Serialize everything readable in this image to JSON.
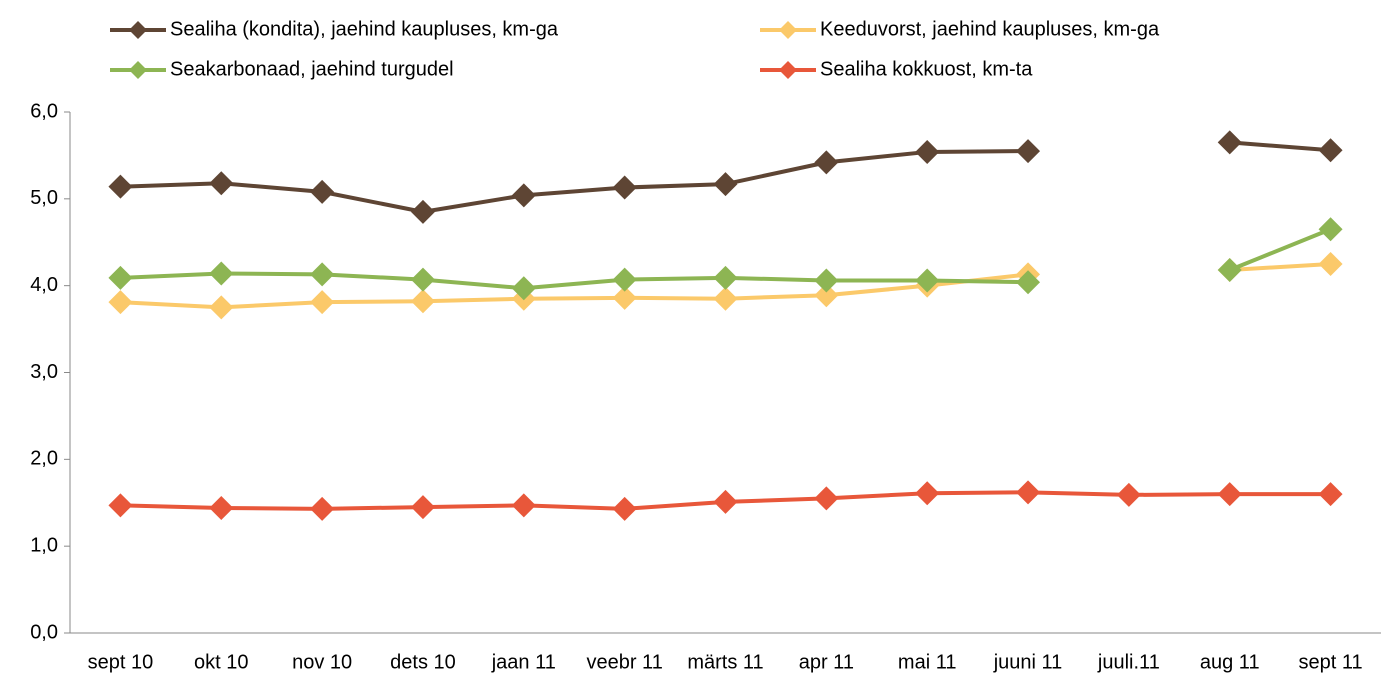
{
  "chart_data": {
    "type": "line",
    "categories": [
      "sept 10",
      "okt 10",
      "nov 10",
      "dets 10",
      "jaan 11",
      "veebr 11",
      "märts 11",
      "apr 11",
      "mai 11",
      "juuni 11",
      "juuli.11",
      "aug 11",
      "sept 11"
    ],
    "series": [
      {
        "name": "Sealiha (kondita), jaehind kaupluses, km-ga",
        "color": "#5e4534",
        "values": [
          5.14,
          5.18,
          5.08,
          4.85,
          5.04,
          5.13,
          5.17,
          5.42,
          5.54,
          5.55,
          null,
          5.65,
          5.56
        ]
      },
      {
        "name": "Keeduvorst, jaehind kaupluses, km-ga",
        "color": "#fbc96a",
        "values": [
          3.81,
          3.75,
          3.81,
          3.82,
          3.85,
          3.86,
          3.85,
          3.89,
          4.0,
          4.13,
          null,
          4.18,
          4.25
        ]
      },
      {
        "name": "Seakarbonaad, jaehind turgudel",
        "color": "#8db553",
        "values": [
          4.09,
          4.14,
          4.13,
          4.07,
          3.97,
          4.07,
          4.09,
          4.06,
          4.06,
          4.04,
          null,
          4.18,
          4.65
        ]
      },
      {
        "name": "Sealiha kokkuost, km-ta",
        "color": "#e8573a",
        "values": [
          1.47,
          1.44,
          1.43,
          1.45,
          1.47,
          1.43,
          1.51,
          1.55,
          1.61,
          1.62,
          1.59,
          1.6,
          1.6
        ]
      }
    ],
    "ylim": [
      0,
      6
    ],
    "yticks": [
      {
        "value": 0,
        "label": "0,0"
      },
      {
        "value": 1,
        "label": "1,0"
      },
      {
        "value": 2,
        "label": "2,0"
      },
      {
        "value": 3,
        "label": "3,0"
      },
      {
        "value": 4,
        "label": "4,0"
      },
      {
        "value": 5,
        "label": "5,0"
      },
      {
        "value": 6,
        "label": "6,0"
      }
    ],
    "legend": "top",
    "grid": false
  }
}
